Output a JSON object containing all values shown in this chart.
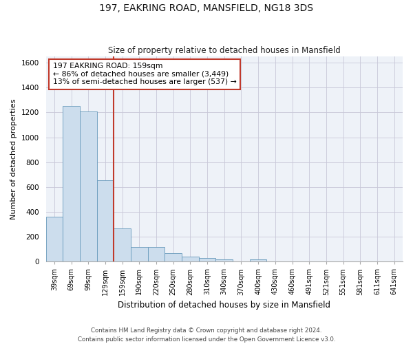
{
  "title_line1": "197, EAKRING ROAD, MANSFIELD, NG18 3DS",
  "title_line2": "Size of property relative to detached houses in Mansfield",
  "xlabel": "Distribution of detached houses by size in Mansfield",
  "ylabel": "Number of detached properties",
  "footer": "Contains HM Land Registry data © Crown copyright and database right 2024.\nContains public sector information licensed under the Open Government Licence v3.0.",
  "categories": [
    "39sqm",
    "69sqm",
    "99sqm",
    "129sqm",
    "159sqm",
    "190sqm",
    "220sqm",
    "250sqm",
    "280sqm",
    "310sqm",
    "340sqm",
    "370sqm",
    "400sqm",
    "430sqm",
    "460sqm",
    "491sqm",
    "521sqm",
    "551sqm",
    "581sqm",
    "611sqm",
    "641sqm"
  ],
  "values": [
    360,
    1250,
    1205,
    655,
    265,
    115,
    115,
    70,
    38,
    27,
    20,
    0,
    20,
    0,
    0,
    0,
    0,
    0,
    0,
    0,
    0
  ],
  "bar_color": "#ccdded",
  "bar_edge_color": "#6699bb",
  "highlight_line_color": "#c0392b",
  "annotation_text": "197 EAKRING ROAD: 159sqm\n← 86% of detached houses are smaller (3,449)\n13% of semi-detached houses are larger (537) →",
  "annotation_box_color": "#ffffff",
  "annotation_box_edge_color": "#c0392b",
  "ylim": [
    0,
    1650
  ],
  "yticks": [
    0,
    200,
    400,
    600,
    800,
    1000,
    1200,
    1400,
    1600
  ],
  "grid_color": "#c8c8d8",
  "background_color": "#ffffff",
  "fig_width": 6.0,
  "fig_height": 5.0
}
